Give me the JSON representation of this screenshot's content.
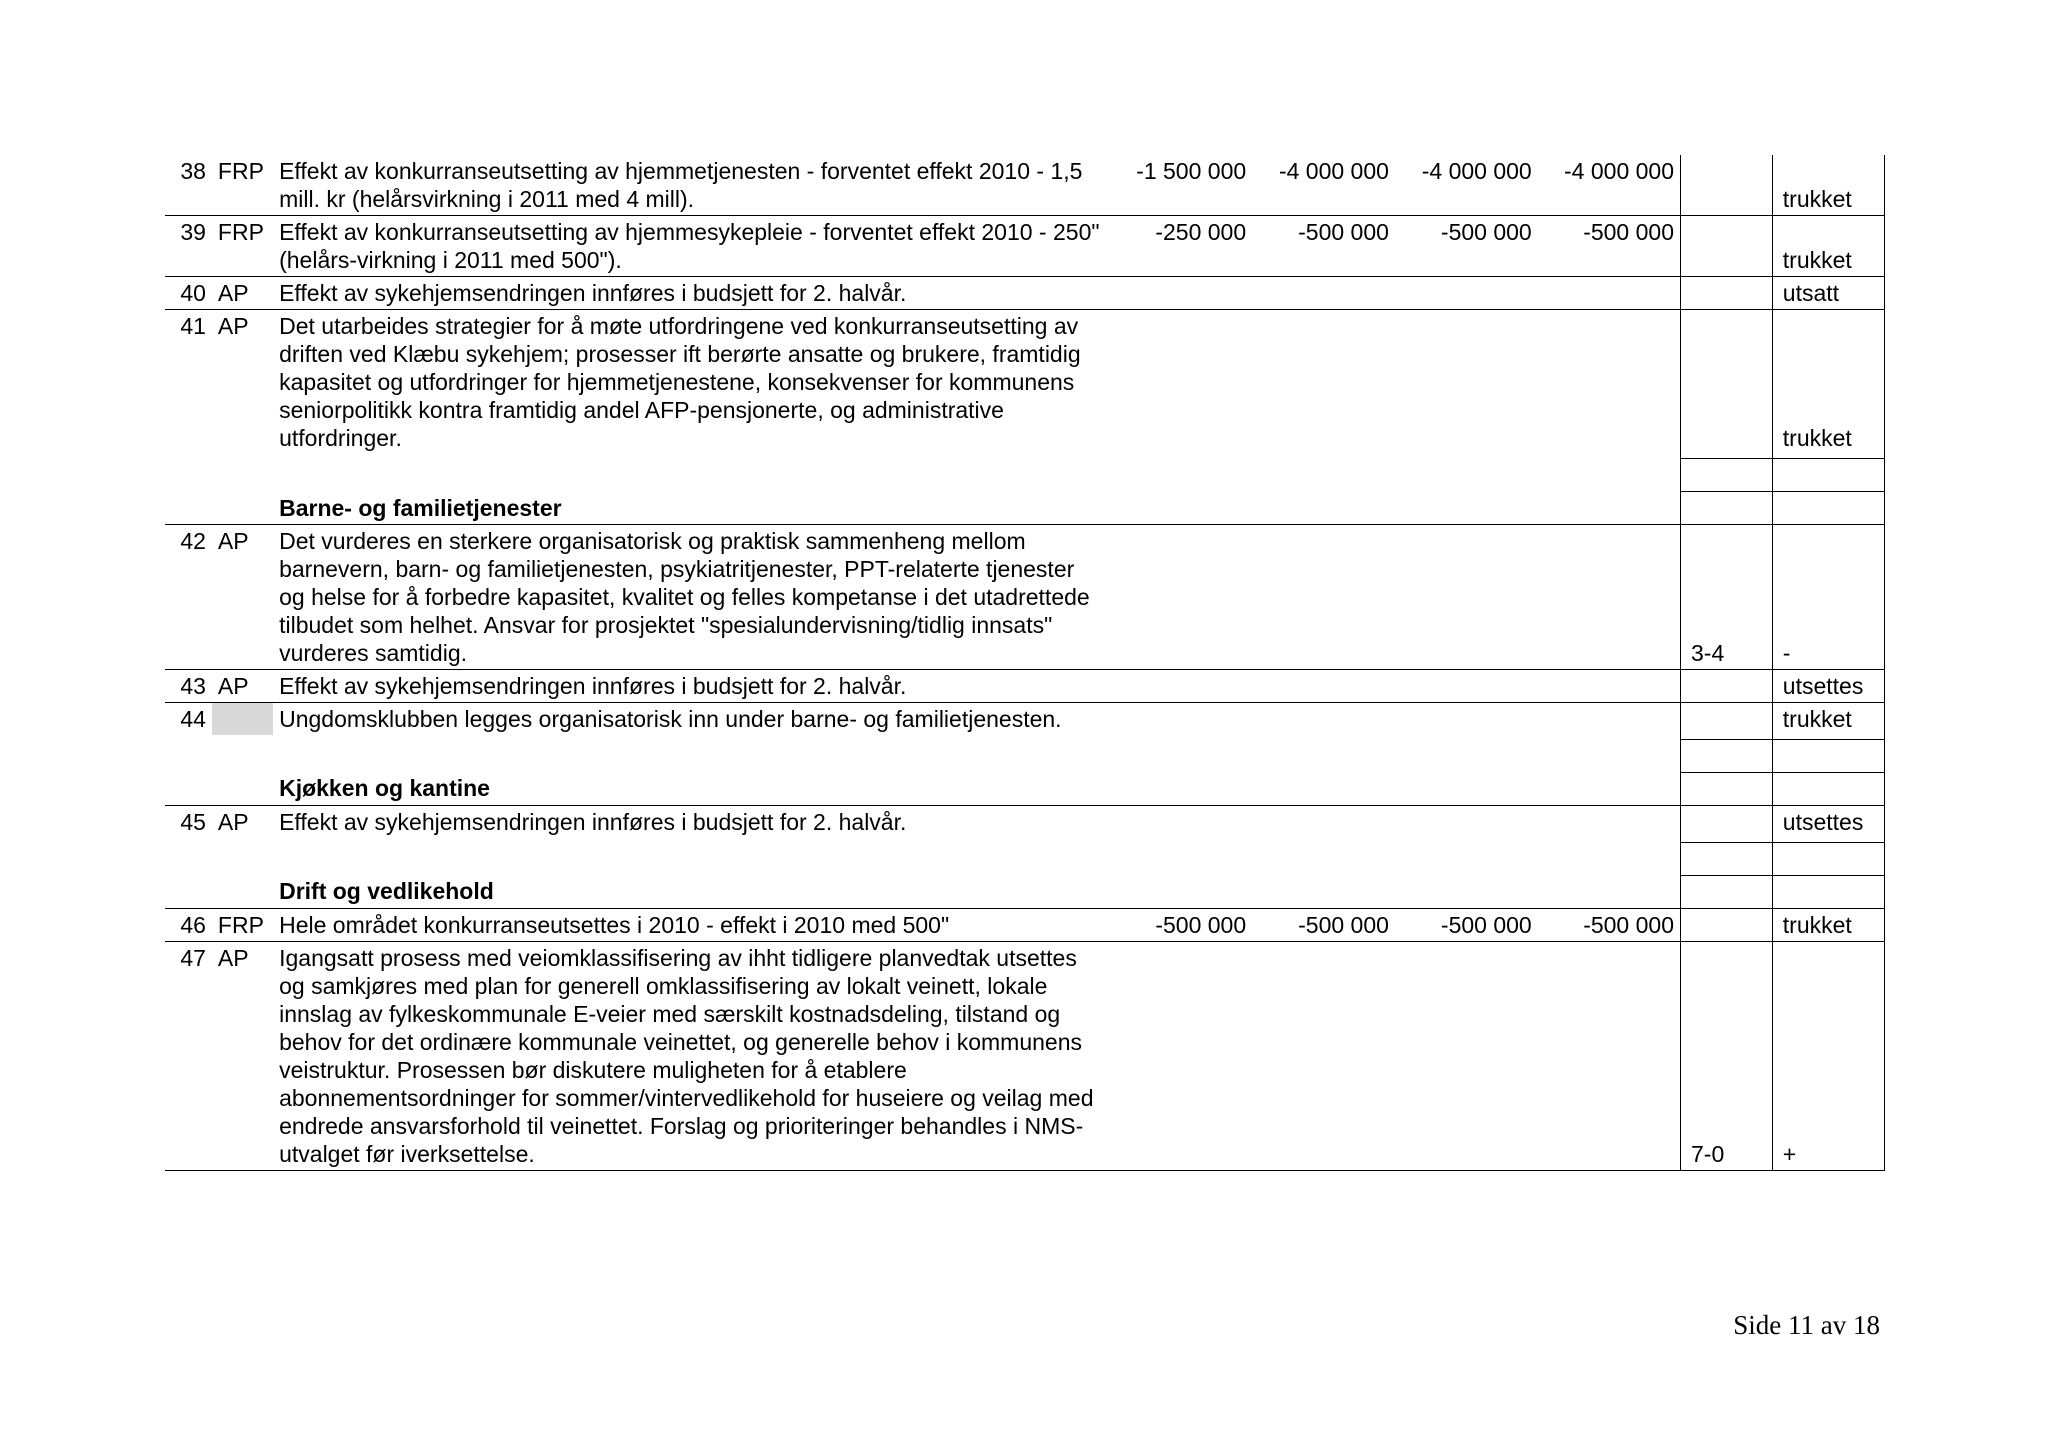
{
  "rows": [
    {
      "num": "38",
      "party": "FRP",
      "desc": "Effekt av konkurranseutsetting av hjemmetjenesten - forventet effekt 2010 - 1,5 mill. kr (helårsvirkning i 2011 med 4 mill).",
      "a1": "-1 500 000",
      "a2": "-4 000 000",
      "a3": "-4 000 000",
      "a4": "-4 000 000",
      "vote": "",
      "status": "trukket"
    },
    {
      "num": "39",
      "party": "FRP",
      "desc": "Effekt av konkurranseutsetting av hjemmesykepleie - forventet effekt 2010 - 250\" (helårs-virkning i 2011 med 500\").",
      "a1": "-250 000",
      "a2": "-500 000",
      "a3": "-500 000",
      "a4": "-500 000",
      "vote": "",
      "status": "trukket"
    },
    {
      "num": "40",
      "party": "AP",
      "desc": "Effekt av sykehjemsendringen innføres i budsjett for 2. halvår.",
      "a1": "",
      "a2": "",
      "a3": "",
      "a4": "",
      "vote": "",
      "status": "utsatt"
    },
    {
      "num": "41",
      "party": "AP",
      "desc": "Det utarbeides strategier for å møte utfordringene ved konkurranseutsetting av driften ved Klæbu sykehjem; prosesser ift berørte ansatte og brukere, framtidig kapasitet og utfordringer for hjemmetjenestene, konsekvenser for kommunens seniorpolitikk kontra framtidig andel AFP-pensjonerte, og administrative utfordringer.",
      "a1": "",
      "a2": "",
      "a3": "",
      "a4": "",
      "vote": "",
      "status": "trukket"
    },
    {
      "header": "Barne- og familietjenester"
    },
    {
      "num": "42",
      "party": "AP",
      "desc": "Det vurderes en sterkere organisatorisk og praktisk sammenheng mellom barnevern, barn- og familietjenesten, psykiatritjenester, PPT-relaterte tjenester og helse for å forbedre kapasitet, kvalitet og felles kompetanse i det utadrettede tilbudet som helhet. Ansvar for prosjektet \"spesialundervisning/tidlig innsats\" vurderes samtidig.",
      "a1": "",
      "a2": "",
      "a3": "",
      "a4": "",
      "vote": "3-4",
      "status": "-"
    },
    {
      "num": "43",
      "party": "AP",
      "desc": "Effekt av sykehjemsendringen innføres i budsjett for 2. halvår.",
      "a1": "",
      "a2": "",
      "a3": "",
      "a4": "",
      "vote": "",
      "status": "utsettes"
    },
    {
      "num": "44",
      "party": "",
      "partyGrey": true,
      "desc": "Ungdomsklubben legges organisatorisk inn under barne- og familietjenesten.",
      "a1": "",
      "a2": "",
      "a3": "",
      "a4": "",
      "vote": "",
      "status": "trukket"
    },
    {
      "header": "Kjøkken og kantine"
    },
    {
      "num": "45",
      "party": "AP",
      "desc": "Effekt av sykehjemsendringen innføres i budsjett for 2. halvår.",
      "a1": "",
      "a2": "",
      "a3": "",
      "a4": "",
      "vote": "",
      "status": "utsettes"
    },
    {
      "header": "Drift og vedlikehold"
    },
    {
      "num": "46",
      "party": "FRP",
      "desc": "Hele området konkurranseutsettes i 2010 - effekt i 2010 med 500\"",
      "a1": "-500 000",
      "a2": "-500 000",
      "a3": "-500 000",
      "a4": "-500 000",
      "vote": "",
      "status": "trukket"
    },
    {
      "num": "47",
      "party": "AP",
      "desc": "Igangsatt prosess med veiomklassifisering av ihht tidligere planvedtak utsettes og samkjøres med plan for generell omklassifisering av lokalt veinett, lokale innslag av fylkeskommunale E-veier med særskilt kostnadsdeling, tilstand og behov for det ordinære kommunale veinettet, og generelle behov i kommunens\nveistruktur. Prosessen bør diskutere muligheten for å etablere abonnementsordninger for sommer/vintervedlikehold for huseiere og veilag med endrede ansvarsforhold til veinettet. Forslag og prioriteringer behandles i NMS-utvalget før iverksettelse.",
      "a1": "",
      "a2": "",
      "a3": "",
      "a4": "",
      "vote": "7-0",
      "status": "+"
    }
  ],
  "pageNumber": "Side 11 av 18",
  "colors": {
    "text": "#000000",
    "border": "#000000",
    "grey": "#d9d9d9",
    "background": "#ffffff"
  },
  "fontSizeTable": 23,
  "fontSizePageNum": 27,
  "pageWidth": 2048,
  "pageHeight": 1447
}
